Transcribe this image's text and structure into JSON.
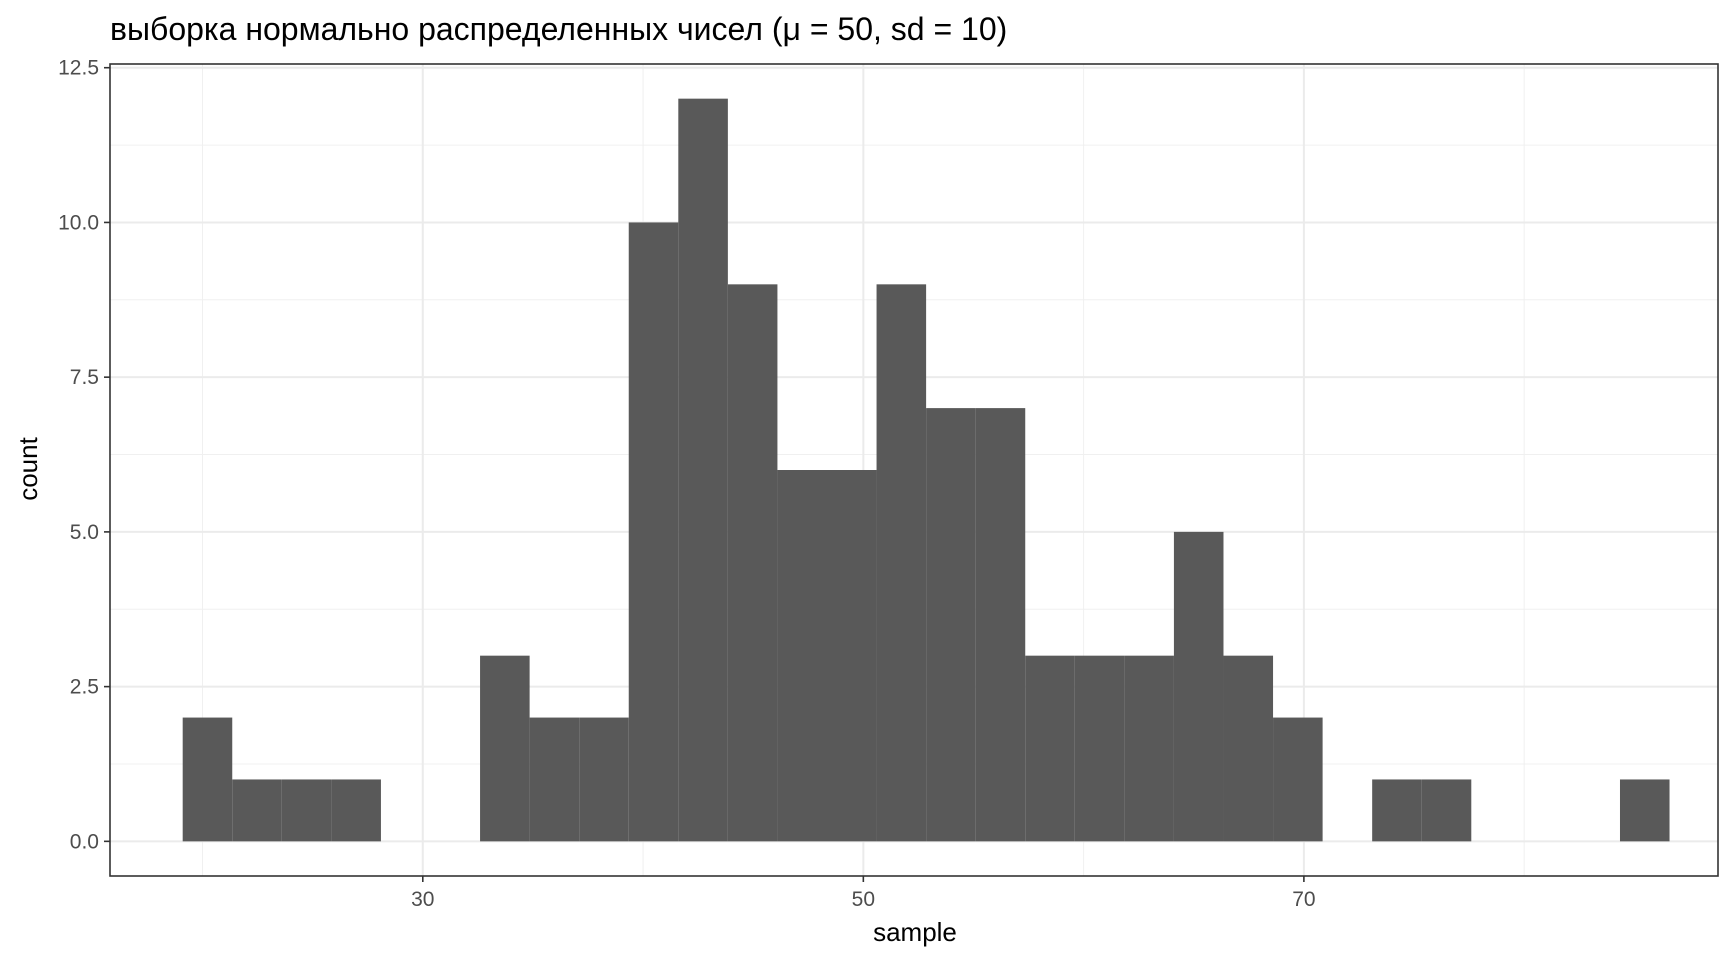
{
  "chart_data": {
    "type": "histogram",
    "title": "выборка нормально распределенных чисел (μ = 50, sd = 10)",
    "xlabel": "sample",
    "ylabel": "count",
    "xlim": [
      15.8,
      88.8
    ],
    "ylim": [
      -0.56,
      12.56
    ],
    "x_ticks": [
      30,
      50,
      70
    ],
    "x_tick_labels": [
      "30",
      "50",
      "70"
    ],
    "y_ticks": [
      0,
      2.5,
      5,
      7.5,
      10,
      12.5
    ],
    "y_tick_labels": [
      "0.0",
      "2.5",
      "5.0",
      "7.5",
      "10.0",
      "12.5"
    ],
    "grid": true,
    "bar_color": "#595959",
    "bins": [
      {
        "x0": 19.1,
        "x1": 21.35,
        "count": 2
      },
      {
        "x0": 21.35,
        "x1": 23.6,
        "count": 1
      },
      {
        "x0": 23.6,
        "x1": 25.85,
        "count": 1
      },
      {
        "x0": 25.85,
        "x1": 28.1,
        "count": 1
      },
      {
        "x0": 28.1,
        "x1": 30.35,
        "count": 0
      },
      {
        "x0": 30.35,
        "x1": 32.6,
        "count": 0
      },
      {
        "x0": 32.6,
        "x1": 34.85,
        "count": 3
      },
      {
        "x0": 34.85,
        "x1": 37.1,
        "count": 2
      },
      {
        "x0": 37.1,
        "x1": 39.35,
        "count": 2
      },
      {
        "x0": 39.35,
        "x1": 41.6,
        "count": 10
      },
      {
        "x0": 41.6,
        "x1": 43.85,
        "count": 12
      },
      {
        "x0": 43.85,
        "x1": 46.1,
        "count": 9
      },
      {
        "x0": 46.1,
        "x1": 48.35,
        "count": 6
      },
      {
        "x0": 48.35,
        "x1": 50.6,
        "count": 6
      },
      {
        "x0": 50.6,
        "x1": 52.85,
        "count": 9
      },
      {
        "x0": 52.85,
        "x1": 55.1,
        "count": 7
      },
      {
        "x0": 55.1,
        "x1": 57.35,
        "count": 7
      },
      {
        "x0": 57.35,
        "x1": 59.6,
        "count": 3
      },
      {
        "x0": 59.6,
        "x1": 61.85,
        "count": 3
      },
      {
        "x0": 61.85,
        "x1": 64.1,
        "count": 3
      },
      {
        "x0": 64.1,
        "x1": 66.35,
        "count": 5
      },
      {
        "x0": 66.35,
        "x1": 68.6,
        "count": 3
      },
      {
        "x0": 68.6,
        "x1": 70.85,
        "count": 2
      },
      {
        "x0": 70.85,
        "x1": 73.1,
        "count": 0
      },
      {
        "x0": 73.1,
        "x1": 75.35,
        "count": 1
      },
      {
        "x0": 75.35,
        "x1": 77.6,
        "count": 1
      },
      {
        "x0": 77.6,
        "x1": 79.85,
        "count": 0
      },
      {
        "x0": 79.85,
        "x1": 82.1,
        "count": 0
      },
      {
        "x0": 82.1,
        "x1": 84.35,
        "count": 0
      },
      {
        "x0": 84.35,
        "x1": 86.6,
        "count": 1
      }
    ]
  }
}
